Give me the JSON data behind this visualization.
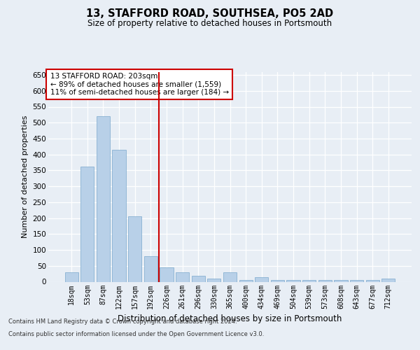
{
  "title": "13, STAFFORD ROAD, SOUTHSEA, PO5 2AD",
  "subtitle": "Size of property relative to detached houses in Portsmouth",
  "xlabel": "Distribution of detached houses by size in Portsmouth",
  "ylabel": "Number of detached properties",
  "categories": [
    "18sqm",
    "53sqm",
    "87sqm",
    "122sqm",
    "157sqm",
    "192sqm",
    "226sqm",
    "261sqm",
    "296sqm",
    "330sqm",
    "365sqm",
    "400sqm",
    "434sqm",
    "469sqm",
    "504sqm",
    "539sqm",
    "573sqm",
    "608sqm",
    "643sqm",
    "677sqm",
    "712sqm"
  ],
  "values": [
    30,
    363,
    520,
    415,
    205,
    80,
    45,
    30,
    18,
    10,
    30,
    5,
    15,
    5,
    5,
    5,
    5,
    5,
    5,
    5,
    10
  ],
  "bar_color": "#b8d0e8",
  "bar_edge_color": "#7aa8cc",
  "vline_x": 5.5,
  "vline_color": "#cc0000",
  "annotation_text": "13 STAFFORD ROAD: 203sqm\n← 89% of detached houses are smaller (1,559)\n11% of semi-detached houses are larger (184) →",
  "annotation_box_color": "#ffffff",
  "annotation_box_edge_color": "#cc0000",
  "ylim": [
    0,
    660
  ],
  "yticks": [
    0,
    50,
    100,
    150,
    200,
    250,
    300,
    350,
    400,
    450,
    500,
    550,
    600,
    650
  ],
  "footer_line1": "Contains HM Land Registry data © Crown copyright and database right 2024.",
  "footer_line2": "Contains public sector information licensed under the Open Government Licence v3.0.",
  "bg_color": "#e8eef5",
  "plot_bg_color": "#e8eef5"
}
